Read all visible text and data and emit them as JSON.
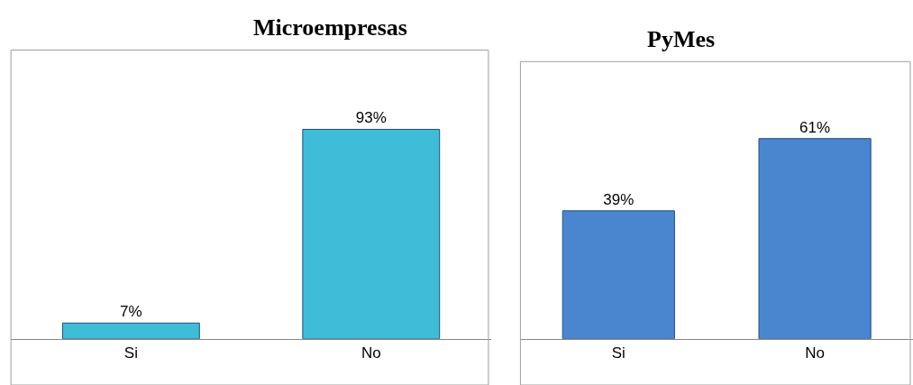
{
  "chart_data": [
    {
      "type": "bar",
      "title": "Microempresas",
      "categories": [
        "Si",
        "No"
      ],
      "values": [
        7,
        93
      ],
      "value_labels": [
        "7%",
        "93%"
      ],
      "color": "#3fbcd8"
    },
    {
      "type": "bar",
      "title": "PyMes",
      "categories": [
        "Si",
        "No"
      ],
      "values": [
        39,
        61
      ],
      "value_labels": [
        "39%",
        "61%"
      ],
      "color": "#4a86d0"
    }
  ]
}
